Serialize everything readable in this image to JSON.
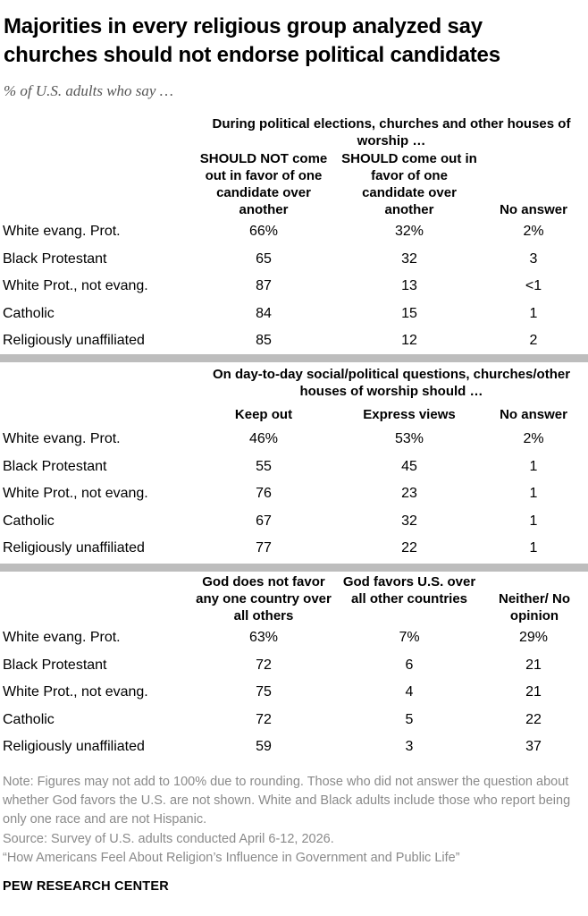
{
  "title": "Majorities in every religious group analyzed say churches should not endorse political candidates",
  "subtitle": "% of U.S. adults who say …",
  "chart_data": {
    "type": "table",
    "row_labels": [
      "White evang. Prot.",
      "Black Protestant",
      "White Prot., not evang.",
      "Catholic",
      "Religiously unaffiliated"
    ],
    "sections": [
      {
        "header": "During political elections, churches and other houses of worship …",
        "columns": [
          "SHOULD NOT come out in favor of one candidate over another",
          "SHOULD come out in favor of one candidate over another",
          "No answer"
        ],
        "rows": [
          [
            "66%",
            "32%",
            "2%"
          ],
          [
            "65",
            "32",
            "3"
          ],
          [
            "87",
            "13",
            "<1"
          ],
          [
            "84",
            "15",
            "1"
          ],
          [
            "85",
            "12",
            "2"
          ]
        ]
      },
      {
        "header": "On day-to-day social/political questions, churches/other houses of worship should …",
        "columns": [
          "Keep out",
          "Express views",
          "No answer"
        ],
        "rows": [
          [
            "46%",
            "53%",
            "2%"
          ],
          [
            "55",
            "45",
            "1"
          ],
          [
            "76",
            "23",
            "1"
          ],
          [
            "67",
            "32",
            "1"
          ],
          [
            "77",
            "22",
            "1"
          ]
        ]
      },
      {
        "header": "",
        "columns": [
          "God does not favor any one country over all others",
          "God favors U.S. over all other countries",
          "Neither/ No opinion"
        ],
        "rows": [
          [
            "63%",
            "7%",
            "29%"
          ],
          [
            "72",
            "6",
            "21"
          ],
          [
            "75",
            "4",
            "21"
          ],
          [
            "72",
            "5",
            "22"
          ],
          [
            "59",
            "3",
            "37"
          ]
        ]
      }
    ]
  },
  "notes": [
    "Note: Figures may not add to 100% due to rounding. Those who did not answer the question about whether God favors the U.S. are not shown. White and Black adults include those who report being only one race and are not Hispanic.",
    "Source: Survey of U.S. adults conducted April 6-12, 2026.",
    "“How Americans Feel About Religion’s Influence in Government and Public Life”"
  ],
  "brand": "PEW RESEARCH CENTER"
}
